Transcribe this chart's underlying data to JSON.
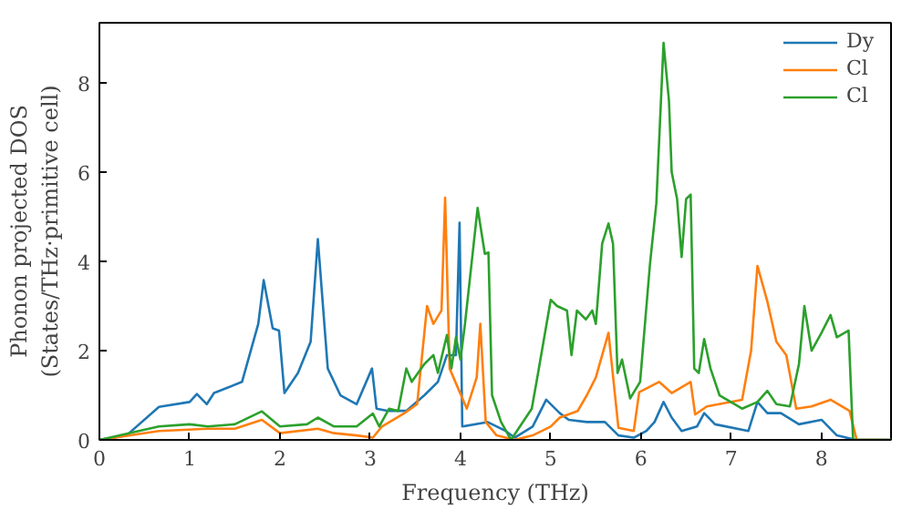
{
  "chart_data": {
    "type": "line",
    "xlabel": "Frequency (THz)",
    "ylabel": "Phonon projected DOS\n(States/THz·primitive cell)",
    "xlim": [
      0,
      8.77
    ],
    "ylim": [
      0,
      9.35
    ],
    "xticks": [
      0,
      1,
      2,
      3,
      4,
      5,
      6,
      7,
      8
    ],
    "yticks": [
      0,
      2,
      4,
      6,
      8
    ],
    "grid": false,
    "legend": "top right",
    "series": [
      {
        "name": "Dy",
        "color": "#1f77b4",
        "x": [
          0,
          0.3,
          0.66,
          1.0,
          1.08,
          1.19,
          1.27,
          1.58,
          1.76,
          1.82,
          1.92,
          1.99,
          2.05,
          2.2,
          2.34,
          2.42,
          2.53,
          2.67,
          2.85,
          3.02,
          3.07,
          3.2,
          3.4,
          3.6,
          3.75,
          3.85,
          3.95,
          3.99,
          4.02,
          4.3,
          4.5,
          4.6,
          4.8,
          4.95,
          5.1,
          5.2,
          5.4,
          5.6,
          5.75,
          5.92,
          6.06,
          6.15,
          6.25,
          6.34,
          6.45,
          6.62,
          6.7,
          6.82,
          7.19,
          7.29,
          7.4,
          7.55,
          7.75,
          8.0,
          8.17,
          8.38,
          8.77
        ],
        "values": [
          0,
          0.1,
          0.74,
          0.85,
          1.03,
          0.8,
          1.05,
          1.3,
          2.6,
          3.58,
          2.5,
          2.45,
          1.05,
          1.5,
          2.2,
          4.5,
          1.6,
          1.0,
          0.8,
          1.6,
          0.7,
          0.65,
          0.65,
          1.0,
          1.3,
          1.9,
          1.9,
          4.87,
          0.3,
          0.4,
          0.2,
          0.05,
          0.3,
          0.9,
          0.6,
          0.45,
          0.4,
          0.4,
          0.1,
          0.05,
          0.2,
          0.4,
          0.85,
          0.5,
          0.2,
          0.3,
          0.6,
          0.35,
          0.2,
          0.85,
          0.6,
          0.6,
          0.35,
          0.45,
          0.1,
          0,
          0
        ]
      },
      {
        "name": "Cl",
        "color": "#ff7f0e",
        "x": [
          0,
          0.66,
          1.2,
          1.5,
          1.8,
          2.0,
          2.42,
          2.6,
          2.85,
          3.03,
          3.13,
          3.38,
          3.52,
          3.63,
          3.7,
          3.79,
          3.83,
          3.88,
          4.07,
          4.18,
          4.22,
          4.28,
          4.4,
          4.6,
          4.8,
          5.0,
          5.1,
          5.3,
          5.4,
          5.5,
          5.64,
          5.75,
          5.92,
          5.98,
          6.2,
          6.34,
          6.55,
          6.6,
          6.73,
          7.12,
          7.22,
          7.29,
          7.4,
          7.5,
          7.61,
          7.72,
          7.89,
          8.1,
          8.31,
          8.39,
          8.77
        ],
        "values": [
          0,
          0.2,
          0.25,
          0.25,
          0.45,
          0.15,
          0.25,
          0.15,
          0.1,
          0.05,
          0.3,
          0.6,
          0.8,
          3.0,
          2.6,
          2.9,
          5.43,
          1.6,
          0.7,
          1.4,
          2.6,
          0.4,
          0.1,
          0,
          0.1,
          0.3,
          0.5,
          0.65,
          1.0,
          1.4,
          2.4,
          0.27,
          0.2,
          1.07,
          1.3,
          1.05,
          1.3,
          0.57,
          0.75,
          0.9,
          2.0,
          3.9,
          3.1,
          2.2,
          1.9,
          0.7,
          0.75,
          0.9,
          0.65,
          0,
          0
        ]
      },
      {
        "name": "Cl",
        "color": "#2ca02c",
        "x": [
          0,
          0.66,
          1.0,
          1.2,
          1.5,
          1.8,
          2.0,
          2.3,
          2.42,
          2.6,
          2.85,
          3.03,
          3.1,
          3.21,
          3.31,
          3.4,
          3.46,
          3.6,
          3.7,
          3.75,
          3.85,
          3.9,
          3.95,
          4.0,
          4.05,
          4.19,
          4.27,
          4.31,
          4.35,
          4.45,
          4.56,
          4.79,
          4.86,
          5.0,
          5.07,
          5.18,
          5.23,
          5.29,
          5.39,
          5.46,
          5.5,
          5.57,
          5.64,
          5.69,
          5.74,
          5.79,
          5.88,
          5.99,
          6.1,
          6.17,
          6.25,
          6.31,
          6.34,
          6.4,
          6.45,
          6.5,
          6.55,
          6.59,
          6.64,
          6.7,
          6.77,
          6.87,
          7.12,
          7.29,
          7.4,
          7.5,
          7.65,
          7.75,
          7.81,
          7.89,
          8.0,
          8.1,
          8.17,
          8.3,
          8.35,
          8.77
        ],
        "values": [
          0,
          0.3,
          0.35,
          0.3,
          0.35,
          0.64,
          0.3,
          0.35,
          0.5,
          0.3,
          0.3,
          0.59,
          0.3,
          0.7,
          0.65,
          1.6,
          1.3,
          1.7,
          1.9,
          1.5,
          2.35,
          1.6,
          2.3,
          1.8,
          2.6,
          5.2,
          4.17,
          4.2,
          1.0,
          0.4,
          0,
          0.7,
          1.5,
          3.14,
          3.0,
          2.9,
          1.9,
          2.9,
          2.7,
          2.9,
          2.6,
          4.4,
          4.85,
          4.4,
          1.5,
          1.8,
          0.93,
          1.3,
          3.95,
          5.3,
          8.9,
          7.6,
          6.0,
          5.4,
          4.1,
          5.4,
          5.5,
          1.6,
          1.5,
          2.26,
          1.6,
          1.0,
          0.7,
          0.85,
          1.1,
          0.8,
          0.75,
          1.7,
          3.0,
          2.0,
          2.4,
          2.8,
          2.3,
          2.45,
          0,
          0
        ]
      }
    ]
  }
}
